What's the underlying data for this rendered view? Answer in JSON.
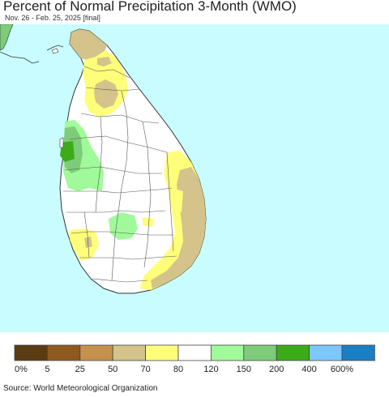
{
  "title": "Percent of Normal Precipitation 3-Month (WMO)",
  "subtitle": "Nov. 26 - Feb. 25, 2025 [final]",
  "source": "Source: World Meteorological Organization",
  "colors": {
    "ocean": "#c8fcfe",
    "land": "#ffffff",
    "boundary": "#555555"
  },
  "legend": {
    "bins": [
      {
        "color": "#5a3b12",
        "label": "0%"
      },
      {
        "color": "#8f5a1e",
        "label": "5"
      },
      {
        "color": "#c4924c",
        "label": "25"
      },
      {
        "color": "#d4c38a",
        "label": "50"
      },
      {
        "color": "#fffe7a",
        "label": "70"
      },
      {
        "color": "#ffffff",
        "label": "80"
      },
      {
        "color": "#a1fa9a",
        "label": "120"
      },
      {
        "color": "#7ccc79",
        "label": "150"
      },
      {
        "color": "#3bac17",
        "label": "200"
      },
      {
        "color": "#7dc8fb",
        "label": "400"
      },
      {
        "color": "#1b7fc4",
        "label": "600%"
      }
    ]
  }
}
